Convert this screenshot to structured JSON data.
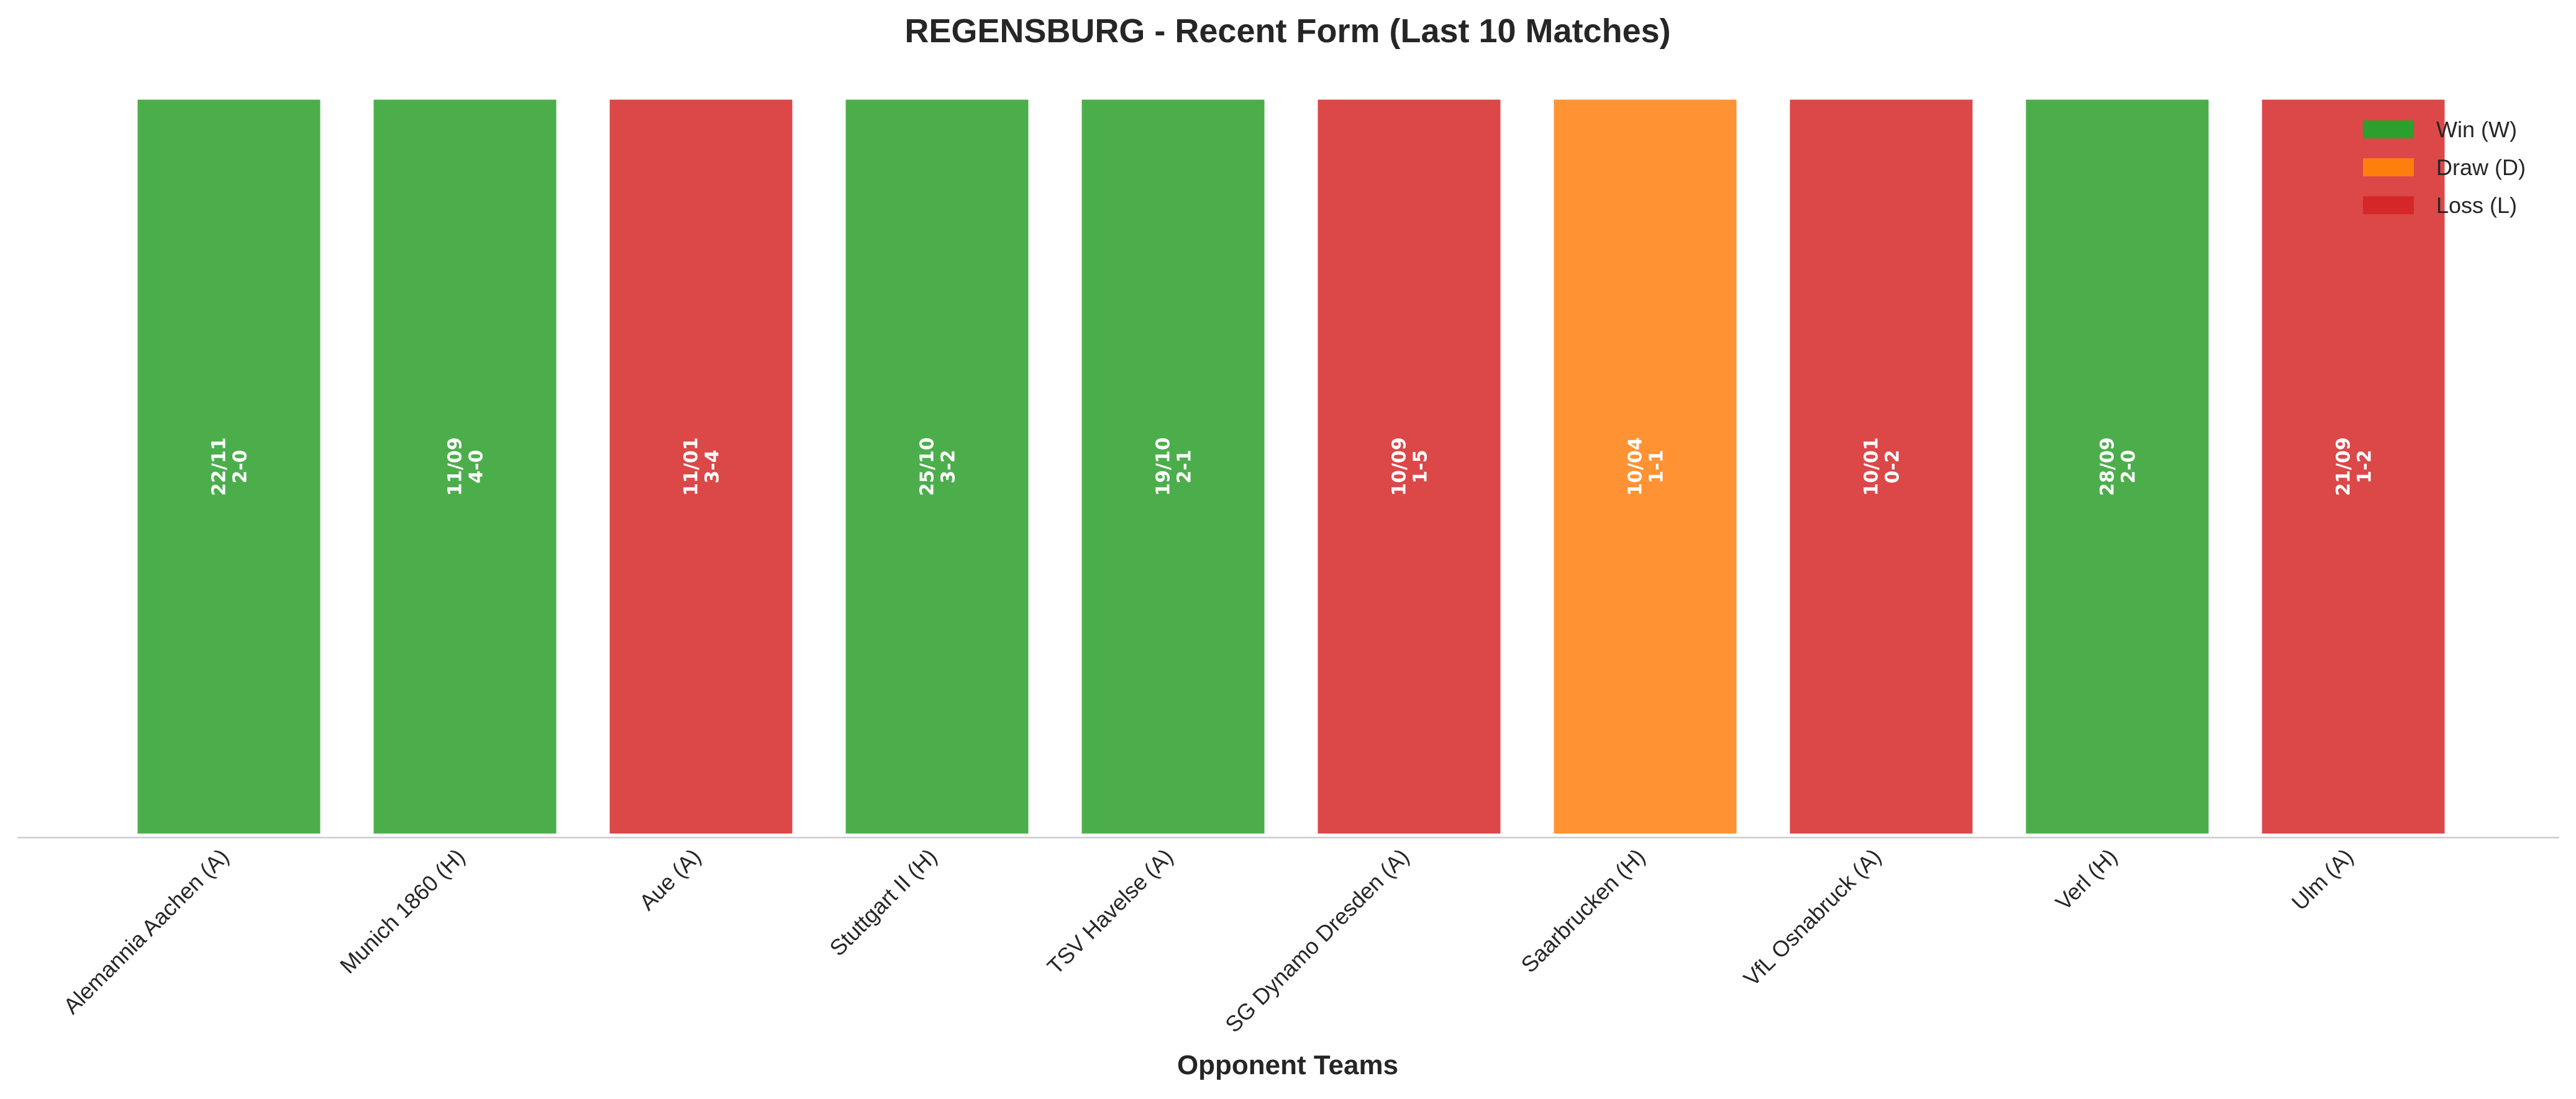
{
  "chart_data": {
    "type": "bar",
    "title": "REGENSBURG - Recent Form (Last 10 Matches)",
    "xlabel": "Opponent Teams",
    "ylabel": "",
    "categories": [
      "Alemannia Aachen (A)",
      "Munich 1860 (H)",
      "Aue (A)",
      "Stuttgart II (H)",
      "TSV Havelse (A)",
      "SG Dynamo Dresden (A)",
      "Saarbrucken (H)",
      "VfL Osnabruck (A)",
      "Verl (H)",
      "Ulm (A)"
    ],
    "values": [
      1,
      1,
      1,
      1,
      1,
      1,
      1,
      1,
      1,
      1
    ],
    "results": [
      "W",
      "W",
      "L",
      "W",
      "W",
      "L",
      "D",
      "L",
      "W",
      "L"
    ],
    "dates": [
      "22/11",
      "11/09",
      "11/01",
      "25/10",
      "19/10",
      "10/09",
      "10/04",
      "10/01",
      "28/09",
      "21/09"
    ],
    "scores": [
      "2-0",
      "4-0",
      "3-4",
      "3-2",
      "2-1",
      "1-5",
      "1-1",
      "0-2",
      "2-0",
      "1-2"
    ],
    "ylim": [
      0,
      1
    ],
    "grid": false,
    "legend_position": "top-right",
    "legend": [
      {
        "key": "W",
        "label": "Win (W)",
        "color": "#2ca02c"
      },
      {
        "key": "D",
        "label": "Draw (D)",
        "color": "#ff7f0e"
      },
      {
        "key": "L",
        "label": "Loss (L)",
        "color": "#d62728"
      }
    ]
  }
}
